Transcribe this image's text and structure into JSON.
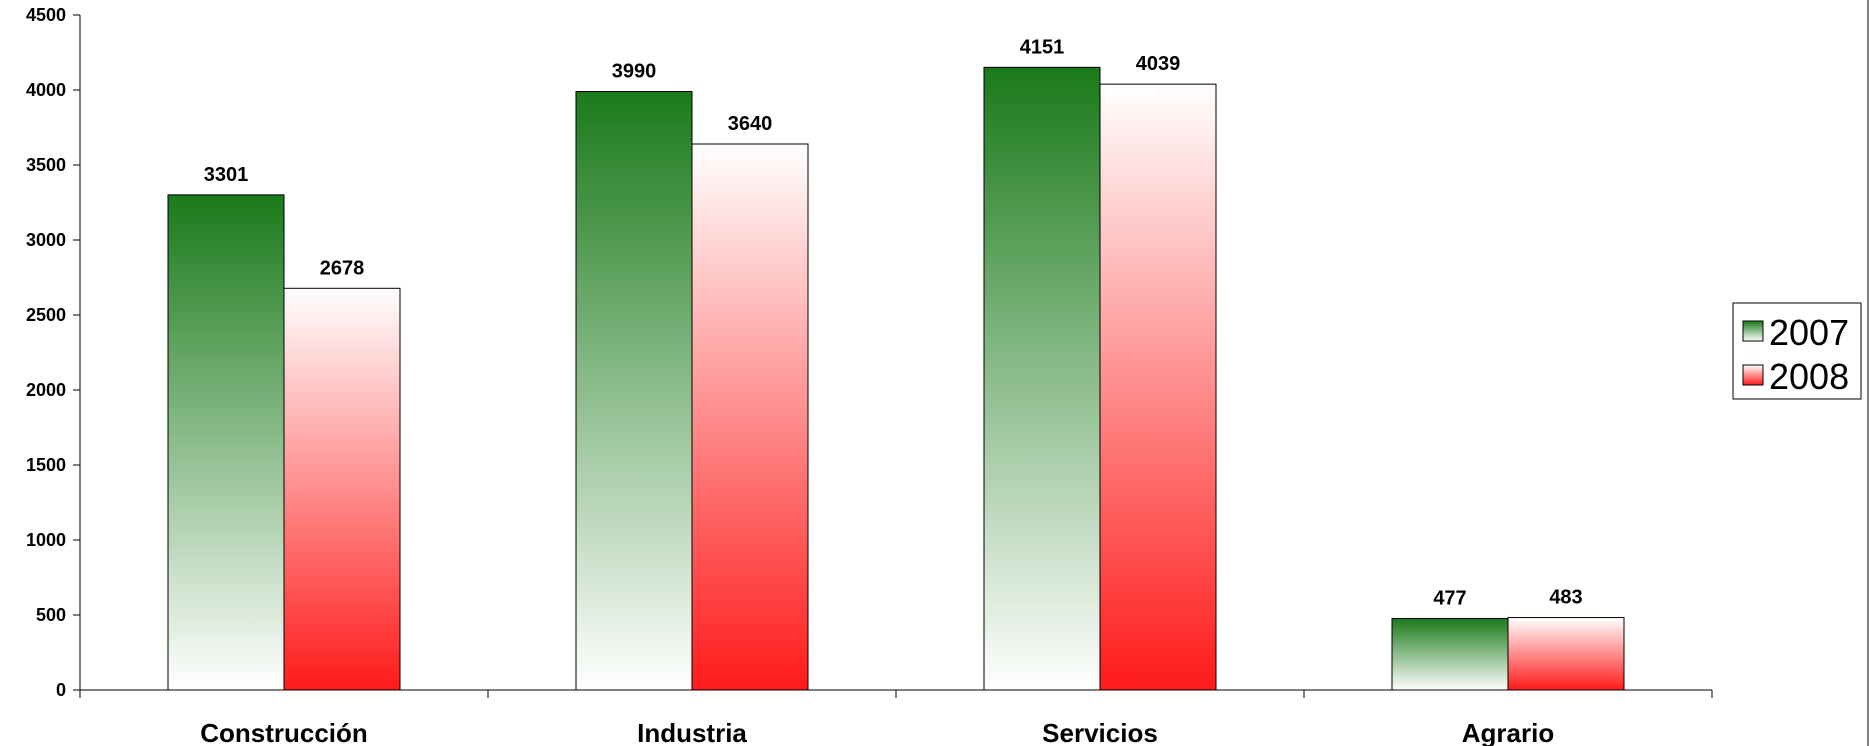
{
  "chart_data": {
    "type": "bar",
    "categories": [
      "Construcción",
      "Industria",
      "Servicios",
      "Agrario"
    ],
    "series": [
      {
        "name": "2007",
        "values": [
          3301,
          3990,
          4151,
          477
        ],
        "color_top": "#1a7a1a",
        "color_bottom": "#ffffff"
      },
      {
        "name": "2008",
        "values": [
          2678,
          3640,
          4039,
          483
        ],
        "color_top": "#ffffff",
        "color_bottom": "#ff1a1a"
      }
    ],
    "title": "",
    "xlabel": "",
    "ylabel": "",
    "ylim": [
      0,
      4500
    ],
    "yticks": [
      0,
      500,
      1000,
      1500,
      2000,
      2500,
      3000,
      3500,
      4000,
      4500
    ],
    "grid": false,
    "legend": "right"
  }
}
